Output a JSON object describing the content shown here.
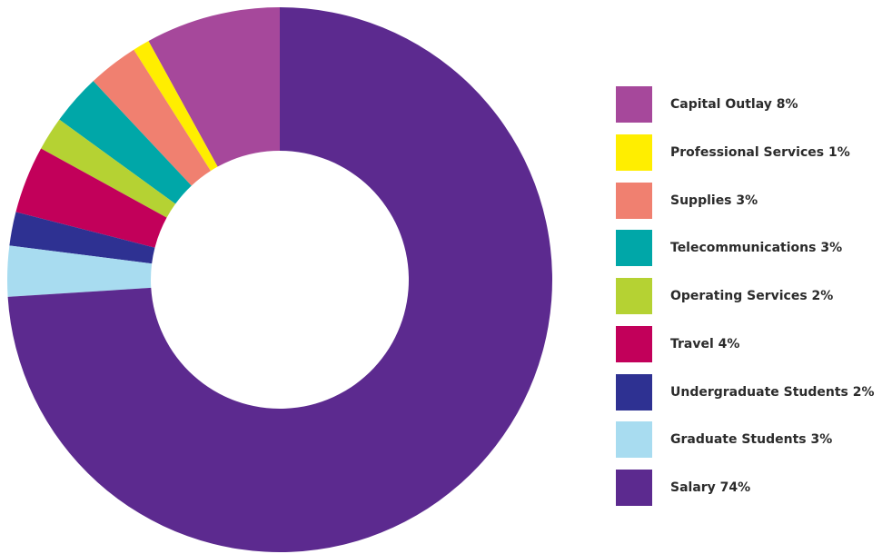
{
  "chart_data": {
    "type": "pie",
    "variant": "donut",
    "start_angle": "12 o'clock",
    "direction": "counterclockwise",
    "legend_position": "right",
    "categories": [
      "Capital Outlay",
      "Professional Services",
      "Supplies",
      "Telecommunications",
      "Operating Services",
      "Travel",
      "Undergraduate Students",
      "Graduate Students",
      "Salary"
    ],
    "values": [
      8,
      1,
      3,
      3,
      2,
      4,
      2,
      3,
      74
    ],
    "unit": "%",
    "colors": [
      "#a6489b",
      "#ffee00",
      "#f08070",
      "#00a7a8",
      "#b5d233",
      "#c2005a",
      "#2e3192",
      "#a8dcf0",
      "#5c2a8f"
    ],
    "legend_labels": [
      "Capital Outlay 8%",
      "Professional Services 1%",
      "Supplies 3%",
      "Telecommunications 3%",
      "Operating Services 2%",
      "Travel 4%",
      "Undergraduate Students 2%",
      "Graduate Students 3%",
      "Salary 74%"
    ]
  }
}
